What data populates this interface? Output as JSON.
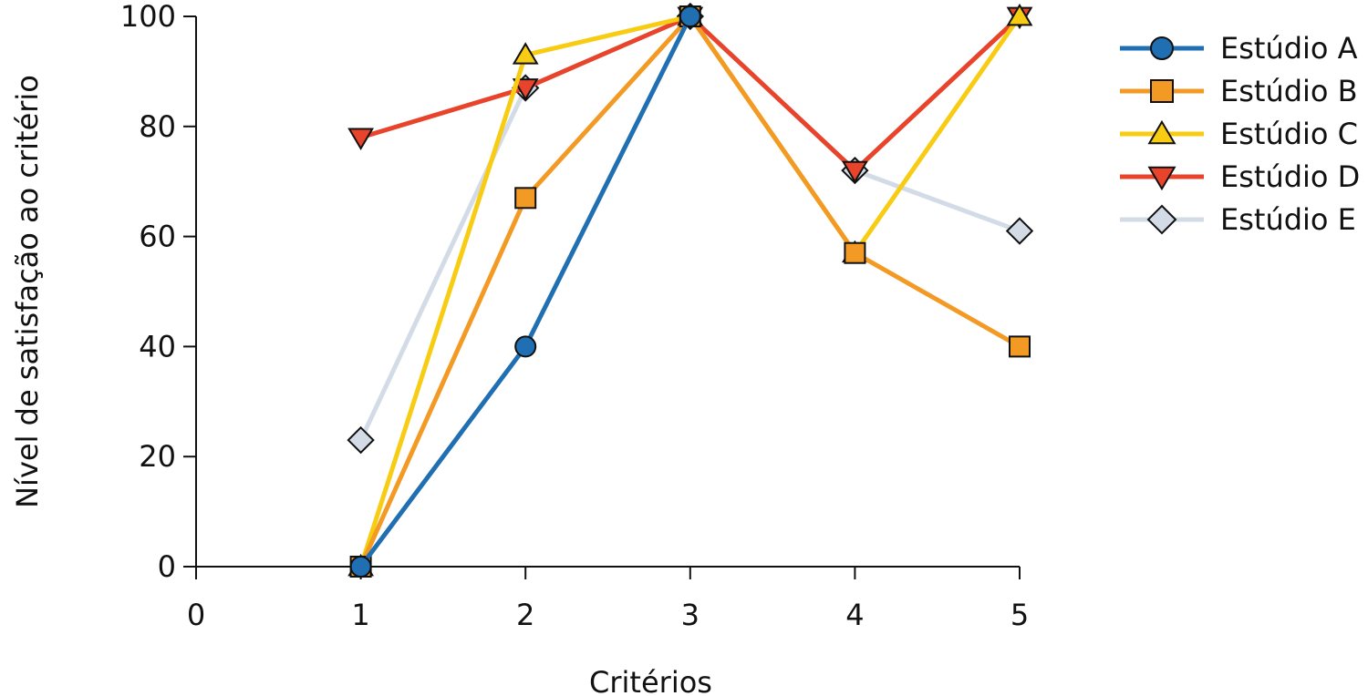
{
  "chart_data": {
    "type": "line",
    "title": "",
    "xlabel": "Critérios",
    "ylabel": "Nível de satisfação ao critério",
    "xlim": [
      0,
      5
    ],
    "ylim": [
      0,
      100
    ],
    "xticks": [
      "0",
      "1",
      "2",
      "3",
      "4",
      "5"
    ],
    "yticks": [
      "0",
      "20",
      "40",
      "60",
      "80",
      "100"
    ],
    "grid": false,
    "legend_position": "top-right",
    "x": [
      1,
      2,
      3,
      4,
      5
    ],
    "series": [
      {
        "name": "Estúdio A",
        "marker": "circle",
        "color": "#1f6fb2",
        "values": [
          0,
          40,
          100,
          null,
          null
        ]
      },
      {
        "name": "Estúdio B",
        "marker": "square",
        "color": "#f39a24",
        "values": [
          0,
          67,
          100,
          57,
          40
        ]
      },
      {
        "name": "Estúdio C",
        "marker": "triangle-up",
        "color": "#f7cc12",
        "values": [
          0,
          93,
          100,
          57,
          100
        ]
      },
      {
        "name": "Estúdio D",
        "marker": "triangle-down",
        "color": "#e8432b",
        "values": [
          78,
          87,
          100,
          72,
          100
        ]
      },
      {
        "name": "Estúdio E",
        "marker": "diamond",
        "color": "#d3dce6",
        "values": [
          23,
          87,
          100,
          72,
          61
        ]
      }
    ]
  }
}
